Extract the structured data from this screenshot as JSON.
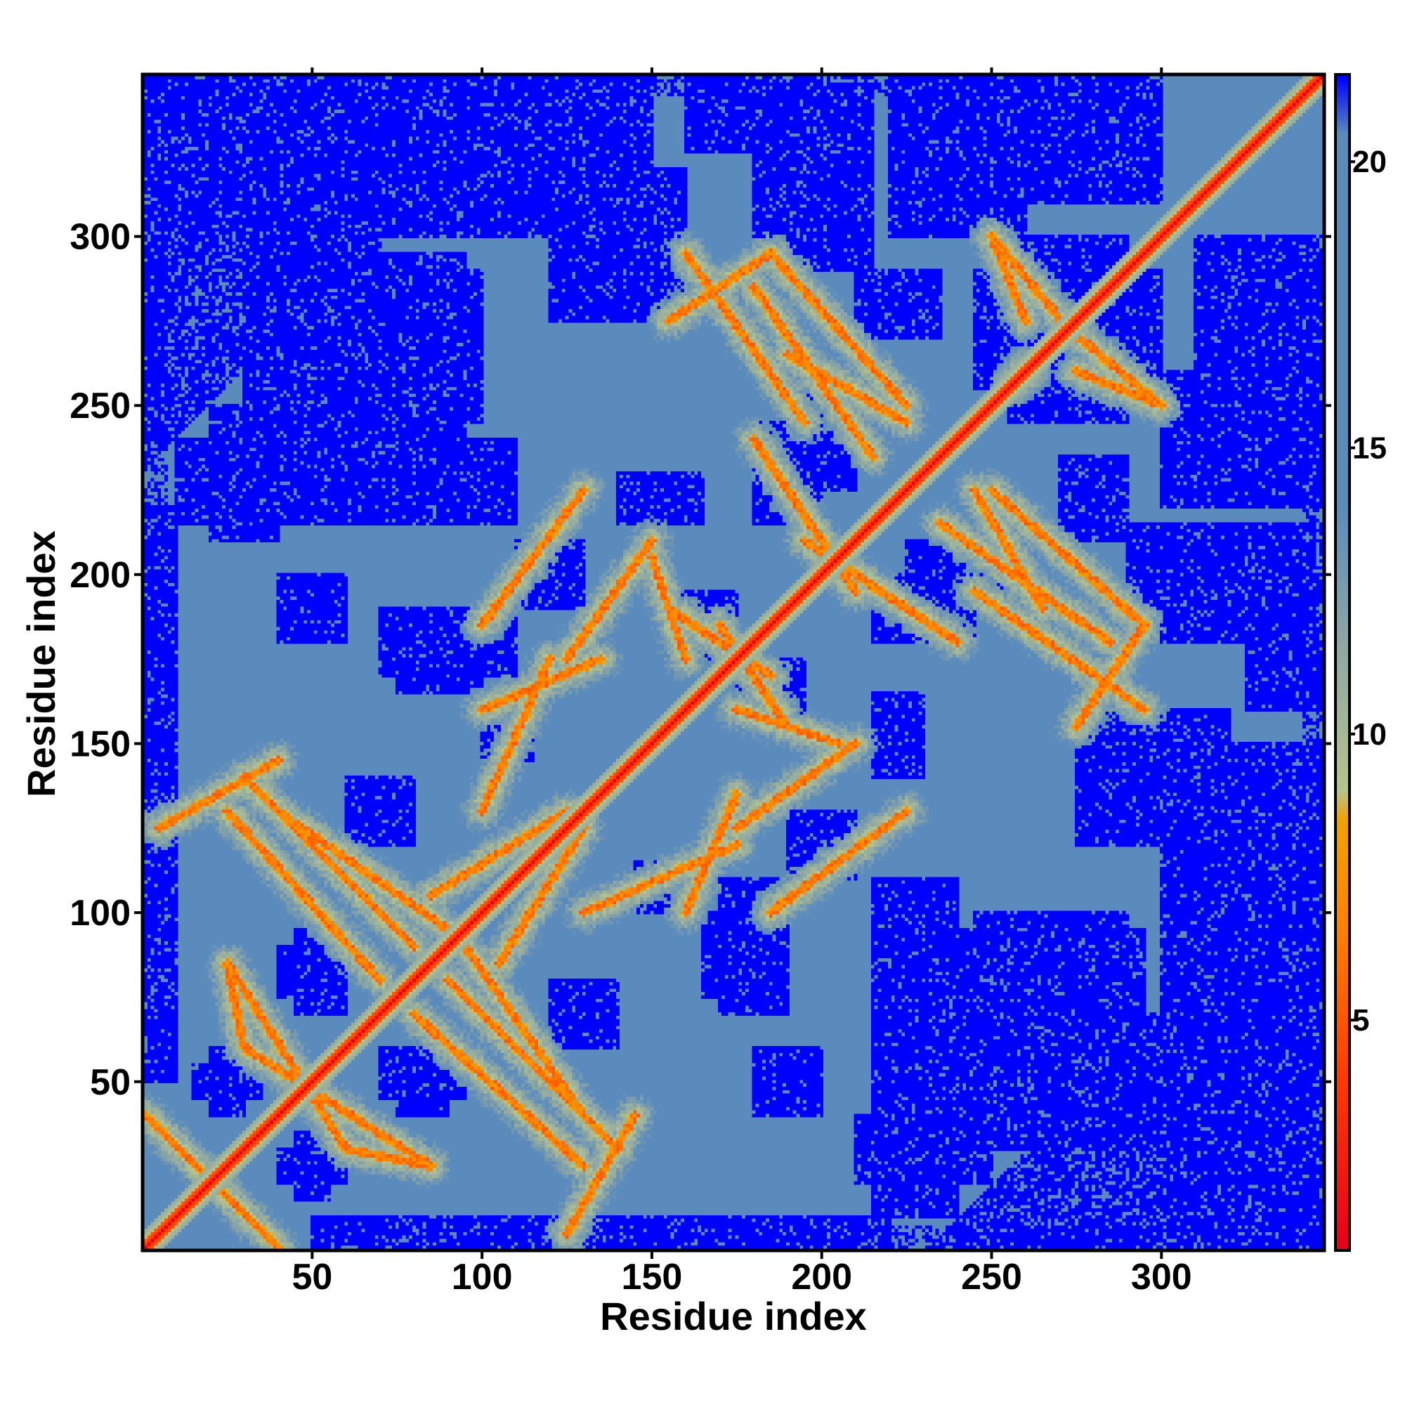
{
  "chart_data": {
    "type": "heatmap",
    "title": "",
    "xlabel": "Residue index",
    "ylabel": "Residue index",
    "n_residues": 347,
    "xlim": [
      1,
      347
    ],
    "ylim": [
      1,
      347
    ],
    "x_ticks": [
      50,
      100,
      150,
      200,
      250,
      300
    ],
    "y_ticks": [
      50,
      100,
      150,
      200,
      250,
      300
    ],
    "x_tick_labels": [
      "50",
      "100",
      "150",
      "200",
      "250",
      "300"
    ],
    "y_tick_labels": [
      "50",
      "100",
      "150",
      "200",
      "250",
      "300"
    ],
    "colorbar": {
      "range": [
        1,
        21.5
      ],
      "ticks": [
        5,
        10,
        15,
        20
      ],
      "tick_labels": [
        "5",
        "10",
        "15",
        "20"
      ],
      "colors": {
        "close": "#e8001c",
        "near": "#ff7f00",
        "mid": "#b6c48c",
        "far": "#5b8bbc",
        "max": "#0000ff"
      },
      "stops": [
        {
          "value": 1,
          "color": "#e8001c"
        },
        {
          "value": 4,
          "color": "#ff3a00"
        },
        {
          "value": 6.5,
          "color": "#ff7f00"
        },
        {
          "value": 8.5,
          "color": "#f2a100"
        },
        {
          "value": 9,
          "color": "#b6c48c"
        },
        {
          "value": 11.5,
          "color": "#8fa8a4"
        },
        {
          "value": 14,
          "color": "#5b8bbc"
        },
        {
          "value": 20.5,
          "color": "#5b8bbc"
        },
        {
          "value": 21.5,
          "color": "#0000ff"
        }
      ]
    },
    "value_meaning": "pairwise residue distance",
    "diagonal": {
      "from": 1,
      "to": 347,
      "value": 1
    },
    "contact_bands": [
      {
        "start": [
          1,
          40
        ],
        "end": [
          40,
          1
        ]
      },
      {
        "start": [
          25,
          85
        ],
        "end": [
          60,
          30
        ]
      },
      {
        "start": [
          60,
          30
        ],
        "end": [
          85,
          25
        ]
      },
      {
        "start": [
          40,
          145
        ],
        "end": [
          5,
          125
        ]
      },
      {
        "start": [
          40,
          130
        ],
        "end": [
          90,
          95
        ]
      },
      {
        "start": [
          80,
          70
        ],
        "end": [
          130,
          25
        ]
      },
      {
        "start": [
          90,
          80
        ],
        "end": [
          140,
          30
        ]
      },
      {
        "start": [
          85,
          105
        ],
        "end": [
          125,
          130
        ]
      },
      {
        "start": [
          100,
          185
        ],
        "end": [
          130,
          225
        ]
      },
      {
        "start": [
          100,
          160
        ],
        "end": [
          135,
          175
        ]
      },
      {
        "start": [
          130,
          100
        ],
        "end": [
          175,
          120
        ]
      },
      {
        "start": [
          155,
          190
        ],
        "end": [
          185,
          170
        ]
      },
      {
        "start": [
          175,
          160
        ],
        "end": [
          205,
          150
        ]
      },
      {
        "start": [
          180,
          240
        ],
        "end": [
          210,
          195
        ]
      },
      {
        "start": [
          175,
          125
        ],
        "end": [
          210,
          150
        ]
      },
      {
        "start": [
          155,
          275
        ],
        "end": [
          185,
          295
        ]
      },
      {
        "start": [
          185,
          295
        ],
        "end": [
          225,
          250
        ]
      },
      {
        "start": [
          190,
          265
        ],
        "end": [
          225,
          245
        ]
      },
      {
        "start": [
          235,
          215
        ],
        "end": [
          285,
          180
        ]
      },
      {
        "start": [
          245,
          195
        ],
        "end": [
          295,
          160
        ]
      },
      {
        "start": [
          250,
          300
        ],
        "end": [
          275,
          270
        ]
      },
      {
        "start": [
          275,
          260
        ],
        "end": [
          300,
          250
        ]
      },
      {
        "start": [
          255,
          255
        ],
        "end": [
          260,
          262
        ]
      }
    ],
    "far_regions": [
      {
        "x": [
          1,
          60
        ],
        "y": [
          310,
          347
        ]
      },
      {
        "x": [
          100,
          150
        ],
        "y": [
          300,
          347
        ]
      },
      {
        "x": [
          180,
          215
        ],
        "y": [
          290,
          345
        ]
      },
      {
        "x": [
          245,
          300
        ],
        "y": [
          310,
          347
        ]
      },
      {
        "x": [
          1,
          10
        ],
        "y": [
          50,
          220
        ]
      },
      {
        "x": [
          30,
          50
        ],
        "y": [
          260,
          295
        ]
      },
      {
        "x": [
          20,
          40
        ],
        "y": [
          210,
          250
        ]
      },
      {
        "x": [
          60,
          95
        ],
        "y": [
          230,
          260
        ]
      },
      {
        "x": [
          70,
          95
        ],
        "y": [
          270,
          295
        ]
      },
      {
        "x": [
          255,
          290
        ],
        "y": [
          245,
          300
        ]
      },
      {
        "x": [
          300,
          347
        ],
        "y": [
          220,
          260
        ]
      },
      {
        "x": [
          300,
          347
        ],
        "y": [
          1,
          110
        ]
      },
      {
        "x": [
          240,
          300
        ],
        "y": [
          30,
          70
        ]
      },
      {
        "x": [
          215,
          240
        ],
        "y": [
          10,
          110
        ]
      },
      {
        "x": [
          245,
          290
        ],
        "y": [
          70,
          100
        ]
      },
      {
        "x": [
          275,
          320
        ],
        "y": [
          120,
          160
        ]
      },
      {
        "x": [
          325,
          347
        ],
        "y": [
          160,
          200
        ]
      },
      {
        "x": [
          225,
          255
        ],
        "y": [
          190,
          210
        ]
      },
      {
        "x": [
          215,
          230
        ],
        "y": [
          140,
          165
        ]
      },
      {
        "x": [
          75,
          100
        ],
        "y": [
          165,
          185
        ]
      },
      {
        "x": [
          145,
          160
        ],
        "y": [
          100,
          115
        ]
      },
      {
        "x": [
          180,
          200
        ],
        "y": [
          40,
          60
        ]
      },
      {
        "x": [
          170,
          190
        ],
        "y": [
          70,
          110
        ]
      },
      {
        "x": [
          120,
          140
        ],
        "y": [
          60,
          80
        ]
      },
      {
        "x": [
          70,
          95
        ],
        "y": [
          45,
          60
        ]
      },
      {
        "x": [
          40,
          60
        ],
        "y": [
          75,
          90
        ]
      },
      {
        "x": [
          15,
          35
        ],
        "y": [
          45,
          55
        ]
      },
      {
        "x": [
          40,
          60
        ],
        "y": [
          20,
          30
        ]
      },
      {
        "x": [
          190,
          210
        ],
        "y": [
          110,
          130
        ]
      },
      {
        "x": [
          155,
          175
        ],
        "y": [
          175,
          195
        ]
      },
      {
        "x": [
          180,
          200
        ],
        "y": [
          215,
          245
        ]
      },
      {
        "x": [
          210,
          235
        ],
        "y": [
          270,
          290
        ]
      }
    ]
  }
}
